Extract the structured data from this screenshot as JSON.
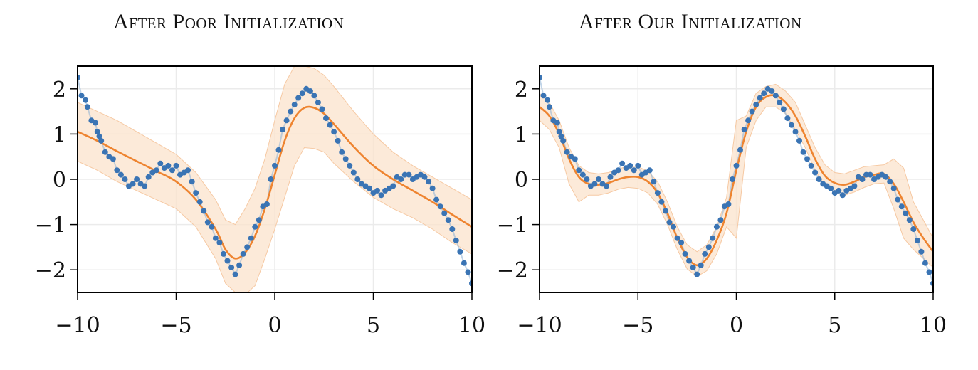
{
  "chart_data": [
    {
      "type": "line",
      "title": "After Poor Initialization",
      "xlabel": "",
      "ylabel": "",
      "xlim": [
        -10,
        10
      ],
      "ylim": [
        -2.5,
        2.5
      ],
      "xticks": [
        -10,
        -5,
        0,
        5,
        10
      ],
      "yticks": [
        -2,
        -1,
        0,
        1,
        2
      ],
      "xtick_labels": [
        "−10",
        "−5",
        "0",
        "5",
        "10"
      ],
      "ytick_labels": [
        "−2",
        "−1",
        "0",
        "1",
        "2"
      ],
      "grid": true,
      "colors": {
        "points": "#3a74b4",
        "mean": "#ee8430",
        "band": "#fbe3cc",
        "truth": "#8db0d5"
      },
      "series": [
        {
          "role": "mean",
          "x": [
            -10,
            -9,
            -8,
            -7,
            -6,
            -5,
            -4,
            -3,
            -2.5,
            -2,
            -1.5,
            -1,
            -0.5,
            0,
            0.5,
            1,
            1.5,
            2,
            2.5,
            3,
            4,
            5,
            6,
            7,
            8,
            9,
            10
          ],
          "y": [
            1.05,
            0.85,
            0.62,
            0.4,
            0.18,
            -0.05,
            -0.45,
            -1.1,
            -1.55,
            -1.75,
            -1.62,
            -1.25,
            -0.65,
            0.1,
            0.85,
            1.35,
            1.58,
            1.58,
            1.45,
            1.22,
            0.72,
            0.3,
            0.0,
            -0.25,
            -0.5,
            -0.78,
            -1.05
          ]
        },
        {
          "role": "band_upper",
          "x": [
            -10,
            -9,
            -8,
            -7,
            -6,
            -5,
            -4,
            -3,
            -2.5,
            -2,
            -1.5,
            -1,
            -0.5,
            0,
            0.5,
            1,
            1.5,
            2,
            2.5,
            3,
            4,
            5,
            6,
            7,
            8,
            9,
            10
          ],
          "y": [
            1.7,
            1.5,
            1.3,
            1.05,
            0.8,
            0.55,
            0.15,
            -0.45,
            -0.9,
            -1.0,
            -0.65,
            -0.2,
            0.45,
            1.3,
            2.1,
            2.5,
            2.5,
            2.45,
            2.3,
            2.05,
            1.5,
            1.0,
            0.6,
            0.3,
            0.05,
            -0.2,
            -0.45
          ]
        },
        {
          "role": "band_lower",
          "x": [
            -10,
            -9,
            -8,
            -7,
            -6,
            -5,
            -4,
            -3,
            -2.5,
            -2,
            -1.5,
            -1,
            -0.5,
            0,
            0.5,
            1,
            1.5,
            2,
            2.5,
            3,
            4,
            5,
            6,
            7,
            8,
            9,
            10
          ],
          "y": [
            0.4,
            0.2,
            -0.05,
            -0.25,
            -0.45,
            -0.65,
            -1.05,
            -1.75,
            -2.3,
            -2.5,
            -2.55,
            -2.35,
            -1.75,
            -1.1,
            -0.4,
            0.3,
            0.7,
            0.68,
            0.6,
            0.35,
            -0.05,
            -0.4,
            -0.65,
            -0.85,
            -1.1,
            -1.4,
            -1.65
          ]
        }
      ]
    },
    {
      "type": "line",
      "title": "After Our Initialization",
      "xlabel": "",
      "ylabel": "",
      "xlim": [
        -10,
        10
      ],
      "ylim": [
        -2.5,
        2.5
      ],
      "xticks": [
        -10,
        -5,
        0,
        5,
        10
      ],
      "yticks": [
        -2,
        -1,
        0,
        1,
        2
      ],
      "xtick_labels": [
        "−10",
        "−5",
        "0",
        "5",
        "10"
      ],
      "ytick_labels": [
        "−2",
        "−1",
        "0",
        "1",
        "2"
      ],
      "grid": true,
      "colors": {
        "points": "#3a74b4",
        "mean": "#ee8430",
        "band": "#fbe3cc",
        "truth": "#8db0d5"
      },
      "series": [
        {
          "role": "mean",
          "x": [
            -10,
            -9.5,
            -9,
            -8.5,
            -8,
            -7.5,
            -7,
            -6.5,
            -6,
            -5.5,
            -5,
            -4.5,
            -4,
            -3.5,
            -3,
            -2.5,
            -2,
            -1.5,
            -1,
            -0.5,
            0,
            0.5,
            1,
            1.5,
            2,
            2.5,
            3,
            3.5,
            4,
            4.5,
            5,
            5.5,
            6,
            6.5,
            7,
            7.5,
            8,
            8.5,
            9,
            9.5,
            10
          ],
          "y": [
            1.6,
            1.4,
            1.0,
            0.45,
            0.05,
            -0.1,
            -0.12,
            -0.08,
            0.0,
            0.05,
            0.05,
            -0.05,
            -0.3,
            -0.75,
            -1.3,
            -1.72,
            -1.9,
            -1.75,
            -1.35,
            -0.75,
            0.2,
            1.05,
            1.6,
            1.82,
            1.85,
            1.7,
            1.4,
            0.95,
            0.45,
            0.08,
            -0.08,
            -0.12,
            -0.05,
            0.05,
            0.1,
            0.12,
            -0.1,
            -0.5,
            -0.95,
            -1.3,
            -1.6
          ]
        },
        {
          "role": "band_upper",
          "x": [
            -10,
            -9.5,
            -9,
            -8.5,
            -8,
            -7.5,
            -7,
            -6.5,
            -6,
            -5.5,
            -5,
            -4.5,
            -4,
            -3.5,
            -3,
            -2.5,
            -2,
            -1.5,
            -1,
            -0.5,
            0,
            0.5,
            1,
            1.5,
            2,
            2.5,
            3,
            3.5,
            4,
            4.5,
            5,
            5.5,
            6,
            6.5,
            7,
            7.5,
            8,
            8.5,
            9,
            9.5,
            10
          ],
          "y": [
            1.9,
            1.7,
            1.3,
            0.7,
            0.3,
            0.15,
            0.12,
            0.15,
            0.22,
            0.3,
            0.28,
            0.18,
            -0.05,
            -0.5,
            -1.05,
            -1.45,
            -1.6,
            -1.45,
            -1.05,
            -0.4,
            1.3,
            1.4,
            1.9,
            2.05,
            2.1,
            1.95,
            1.7,
            1.2,
            0.7,
            0.32,
            0.15,
            0.12,
            0.2,
            0.28,
            0.3,
            0.32,
            0.45,
            0.25,
            -0.5,
            -0.9,
            -1.3
          ]
        },
        {
          "role": "band_lower",
          "x": [
            -10,
            -9.5,
            -9,
            -8.5,
            -8,
            -7.5,
            -7,
            -6.5,
            -6,
            -5.5,
            -5,
            -4.5,
            -4,
            -3.5,
            -3,
            -2.5,
            -2,
            -1.5,
            -1,
            -0.5,
            0,
            0.5,
            1,
            1.5,
            2,
            2.5,
            3,
            3.5,
            4,
            4.5,
            5,
            5.5,
            6,
            6.5,
            7,
            7.5,
            8,
            8.5,
            9,
            9.5,
            10
          ],
          "y": [
            1.3,
            1.1,
            0.7,
            -0.1,
            -0.5,
            -0.35,
            -0.35,
            -0.3,
            -0.22,
            -0.18,
            -0.2,
            -0.3,
            -0.55,
            -1.0,
            -1.55,
            -1.98,
            -2.15,
            -2.02,
            -1.65,
            -1.05,
            -1.3,
            0.7,
            1.3,
            1.6,
            1.6,
            1.45,
            1.1,
            0.7,
            0.2,
            -0.15,
            -0.3,
            -0.35,
            -0.28,
            -0.18,
            -0.1,
            -0.08,
            -0.65,
            -1.3,
            -1.55,
            -1.75,
            -1.95
          ]
        }
      ]
    }
  ],
  "observations": {
    "x": [
      -10,
      -9.8,
      -9.6,
      -9.5,
      -9.3,
      -9.1,
      -9.0,
      -8.9,
      -8.8,
      -8.6,
      -8.4,
      -8.2,
      -8.0,
      -7.8,
      -7.6,
      -7.4,
      -7.2,
      -7.0,
      -6.8,
      -6.6,
      -6.4,
      -6.2,
      -6.0,
      -5.8,
      -5.6,
      -5.4,
      -5.2,
      -5.0,
      -4.8,
      -4.6,
      -4.4,
      -4.2,
      -4.0,
      -3.8,
      -3.6,
      -3.4,
      -3.2,
      -3.0,
      -2.8,
      -2.6,
      -2.4,
      -2.2,
      -2.0,
      -1.8,
      -1.6,
      -1.4,
      -1.2,
      -1.0,
      -0.8,
      -0.6,
      -0.4,
      -0.2,
      0.0,
      0.2,
      0.4,
      0.6,
      0.8,
      1.0,
      1.2,
      1.4,
      1.6,
      1.8,
      2.0,
      2.2,
      2.4,
      2.6,
      2.8,
      3.0,
      3.2,
      3.4,
      3.6,
      3.8,
      4.0,
      4.2,
      4.4,
      4.6,
      4.8,
      5.0,
      5.2,
      5.4,
      5.6,
      5.8,
      6.0,
      6.2,
      6.4,
      6.6,
      6.8,
      7.0,
      7.2,
      7.4,
      7.6,
      7.8,
      8.0,
      8.2,
      8.4,
      8.6,
      8.8,
      9.0,
      9.2,
      9.4,
      9.6,
      9.8,
      10.0
    ],
    "y": [
      2.25,
      1.85,
      1.75,
      1.6,
      1.3,
      1.25,
      1.05,
      0.95,
      0.85,
      0.6,
      0.5,
      0.45,
      0.2,
      0.1,
      0.0,
      -0.15,
      -0.1,
      0.0,
      -0.1,
      -0.15,
      0.05,
      0.15,
      0.2,
      0.35,
      0.25,
      0.3,
      0.2,
      0.3,
      0.1,
      0.15,
      0.2,
      -0.05,
      -0.3,
      -0.5,
      -0.7,
      -0.95,
      -1.05,
      -1.3,
      -1.4,
      -1.65,
      -1.8,
      -1.95,
      -2.1,
      -1.9,
      -1.65,
      -1.5,
      -1.3,
      -1.05,
      -0.9,
      -0.6,
      -0.55,
      0.0,
      0.3,
      0.65,
      1.1,
      1.3,
      1.5,
      1.65,
      1.8,
      1.9,
      2.0,
      1.95,
      1.85,
      1.7,
      1.55,
      1.35,
      1.2,
      1.05,
      0.85,
      0.6,
      0.45,
      0.3,
      0.15,
      0.0,
      -0.1,
      -0.15,
      -0.2,
      -0.3,
      -0.25,
      -0.35,
      -0.25,
      -0.2,
      -0.15,
      0.05,
      0.0,
      0.1,
      0.1,
      0.0,
      0.05,
      0.1,
      0.05,
      -0.05,
      -0.2,
      -0.45,
      -0.6,
      -0.75,
      -0.9,
      -1.1,
      -1.35,
      -1.6,
      -1.85,
      -2.05,
      -2.3
    ]
  },
  "titles": [
    "After Poor Initialization",
    "After Our Initialization"
  ]
}
